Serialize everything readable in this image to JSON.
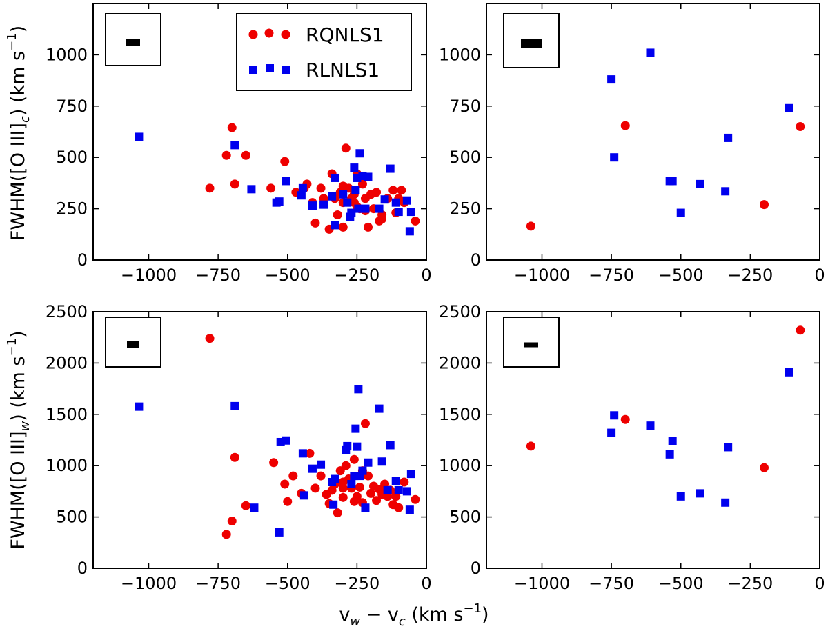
{
  "figure": {
    "ylabel_top": "FWHM([O III]",
    "ylabel_top_sub": "c",
    "ylabel_bottom": "FWHM([O III]",
    "ylabel_bottom_sub": "w",
    "ylabel_unit": ") (km s",
    "ylabel_exp": "−1",
    "ylabel_close": ")",
    "xlabel_v": "v",
    "xlabel_sub1": "w",
    "xlabel_minus": " − v",
    "xlabel_sub2": "c",
    "xlabel_unit": " (km s",
    "xlabel_exp": "−1",
    "xlabel_close": ")"
  },
  "legend": {
    "entries": [
      {
        "label": "RQNLS1",
        "marker": "circle",
        "color": "#ee0000"
      },
      {
        "label": "RLNLS1",
        "marker": "square",
        "color": "#0000ee"
      }
    ]
  },
  "chart_data": [
    {
      "type": "scatter",
      "panel": "top-left",
      "xlim": [
        -1200,
        0
      ],
      "ylim": [
        0,
        1250
      ],
      "xticks": [
        -1000,
        -750,
        -500,
        -250,
        0
      ],
      "yticks": [
        0,
        250,
        500,
        750,
        1000
      ],
      "xtick_labels": [
        "−1000",
        "−750",
        "−500",
        "−250",
        "0"
      ],
      "ytick_labels": [
        "0",
        "250",
        "500",
        "750",
        "1000"
      ],
      "legend": "top-right",
      "series": [
        {
          "name": "RQNLS1",
          "marker": "circle",
          "color": "#ee0000",
          "x": [
            -780,
            -720,
            -700,
            -690,
            -650,
            -560,
            -510,
            -470,
            -440,
            -430,
            -410,
            -400,
            -380,
            -370,
            -350,
            -340,
            -330,
            -320,
            -310,
            -300,
            -300,
            -290,
            -280,
            -270,
            -260,
            -260,
            -250,
            -240,
            -230,
            -220,
            -220,
            -210,
            -200,
            -190,
            -180,
            -170,
            -160,
            -140,
            -120,
            -110,
            -100,
            -90,
            -80,
            -40,
            -300,
            -160,
            -250
          ],
          "y": [
            350,
            510,
            645,
            370,
            510,
            350,
            480,
            330,
            350,
            370,
            280,
            180,
            350,
            300,
            150,
            420,
            300,
            220,
            330,
            360,
            160,
            545,
            350,
            300,
            320,
            280,
            420,
            250,
            370,
            300,
            240,
            160,
            320,
            250,
            330,
            190,
            220,
            300,
            340,
            230,
            300,
            340,
            280,
            190,
            280,
            200,
            260
          ]
        },
        {
          "name": "RLNLS1",
          "marker": "square",
          "color": "#0000ee",
          "x": [
            -1035,
            -690,
            -630,
            -540,
            -530,
            -505,
            -450,
            -445,
            -410,
            -370,
            -340,
            -330,
            -330,
            -300,
            -285,
            -275,
            -260,
            -255,
            -250,
            -245,
            -240,
            -230,
            -220,
            -210,
            -170,
            -150,
            -130,
            -110,
            -100,
            -70,
            -60,
            -55,
            -270
          ],
          "y": [
            600,
            560,
            345,
            280,
            285,
            385,
            315,
            350,
            265,
            270,
            310,
            170,
            400,
            320,
            280,
            210,
            450,
            340,
            400,
            250,
            520,
            410,
            250,
            405,
            250,
            295,
            445,
            280,
            235,
            290,
            140,
            235,
            230
          ]
        }
      ]
    },
    {
      "type": "scatter",
      "panel": "top-right",
      "xlim": [
        -1200,
        0
      ],
      "ylim": [
        0,
        1250
      ],
      "xticks": [
        -1000,
        -750,
        -500,
        -250,
        0
      ],
      "yticks": [
        0,
        250,
        500,
        750,
        1000
      ],
      "xtick_labels": [
        "−1000",
        "−750",
        "−500",
        "−250",
        "0"
      ],
      "ytick_labels": [
        "0",
        "250",
        "500",
        "750",
        "1000"
      ],
      "series": [
        {
          "name": "RQNLS1",
          "marker": "circle",
          "color": "#ee0000",
          "x": [
            -1040,
            -700,
            -200,
            -70
          ],
          "y": [
            165,
            655,
            270,
            650
          ]
        },
        {
          "name": "RLNLS1",
          "marker": "square",
          "color": "#0000ee",
          "x": [
            -750,
            -740,
            -610,
            -540,
            -530,
            -500,
            -430,
            -340,
            -330,
            -110
          ],
          "y": [
            880,
            500,
            1010,
            385,
            385,
            230,
            370,
            335,
            595,
            740
          ]
        }
      ]
    },
    {
      "type": "scatter",
      "panel": "bottom-left",
      "xlim": [
        -1200,
        0
      ],
      "ylim": [
        0,
        2500
      ],
      "xticks": [
        -1000,
        -750,
        -500,
        -250,
        0
      ],
      "yticks": [
        0,
        500,
        1000,
        1500,
        2000,
        2500
      ],
      "xtick_labels": [
        "−1000",
        "−750",
        "−500",
        "−250",
        "0"
      ],
      "ytick_labels": [
        "0",
        "500",
        "1000",
        "1500",
        "2000",
        "2500"
      ],
      "series": [
        {
          "name": "RQNLS1",
          "marker": "circle",
          "color": "#ee0000",
          "x": [
            -780,
            -720,
            -700,
            -690,
            -650,
            -550,
            -510,
            -500,
            -480,
            -450,
            -420,
            -400,
            -380,
            -360,
            -350,
            -340,
            -330,
            -320,
            -310,
            -300,
            -300,
            -290,
            -280,
            -270,
            -260,
            -250,
            -240,
            -230,
            -220,
            -210,
            -200,
            -190,
            -180,
            -170,
            -160,
            -150,
            -140,
            -130,
            -120,
            -110,
            -100,
            -80,
            -40,
            -300,
            -260,
            -230
          ],
          "y": [
            2240,
            330,
            460,
            1080,
            610,
            1030,
            820,
            650,
            900,
            730,
            1120,
            780,
            900,
            720,
            630,
            760,
            820,
            540,
            950,
            780,
            690,
            1000,
            870,
            780,
            1060,
            700,
            790,
            640,
            1410,
            900,
            730,
            800,
            660,
            770,
            720,
            820,
            700,
            760,
            620,
            700,
            590,
            840,
            670,
            840,
            650,
            950
          ]
        },
        {
          "name": "RLNLS1",
          "marker": "square",
          "color": "#0000ee",
          "x": [
            -1035,
            -690,
            -620,
            -530,
            -525,
            -505,
            -445,
            -440,
            -410,
            -380,
            -340,
            -335,
            -330,
            -290,
            -285,
            -270,
            -255,
            -250,
            -245,
            -240,
            -230,
            -220,
            -210,
            -170,
            -160,
            -140,
            -130,
            -110,
            -100,
            -70,
            -60,
            -55,
            -260
          ],
          "y": [
            1575,
            1580,
            590,
            350,
            1230,
            1245,
            1120,
            710,
            970,
            1010,
            840,
            620,
            870,
            1150,
            1190,
            820,
            1360,
            1185,
            1745,
            900,
            950,
            590,
            1030,
            1555,
            1040,
            760,
            1200,
            850,
            760,
            750,
            570,
            920,
            900
          ]
        }
      ]
    },
    {
      "type": "scatter",
      "panel": "bottom-right",
      "xlim": [
        -1200,
        0
      ],
      "ylim": [
        0,
        2500
      ],
      "xticks": [
        -1000,
        -750,
        -500,
        -250,
        0
      ],
      "yticks": [
        0,
        500,
        1000,
        1500,
        2000,
        2500
      ],
      "xtick_labels": [
        "−1000",
        "−750",
        "−500",
        "−250",
        "0"
      ],
      "ytick_labels": [
        "0",
        "500",
        "1000",
        "1500",
        "2000",
        "2500"
      ],
      "series": [
        {
          "name": "RQNLS1",
          "marker": "circle",
          "color": "#ee0000",
          "x": [
            -1040,
            -700,
            -200,
            -70
          ],
          "y": [
            1190,
            1450,
            980,
            2320
          ]
        },
        {
          "name": "RLNLS1",
          "marker": "square",
          "color": "#0000ee",
          "x": [
            -750,
            -740,
            -610,
            -540,
            -530,
            -500,
            -430,
            -340,
            -330,
            -110
          ],
          "y": [
            1320,
            1490,
            1390,
            1110,
            1240,
            700,
            730,
            640,
            1180,
            1910
          ]
        }
      ]
    }
  ]
}
